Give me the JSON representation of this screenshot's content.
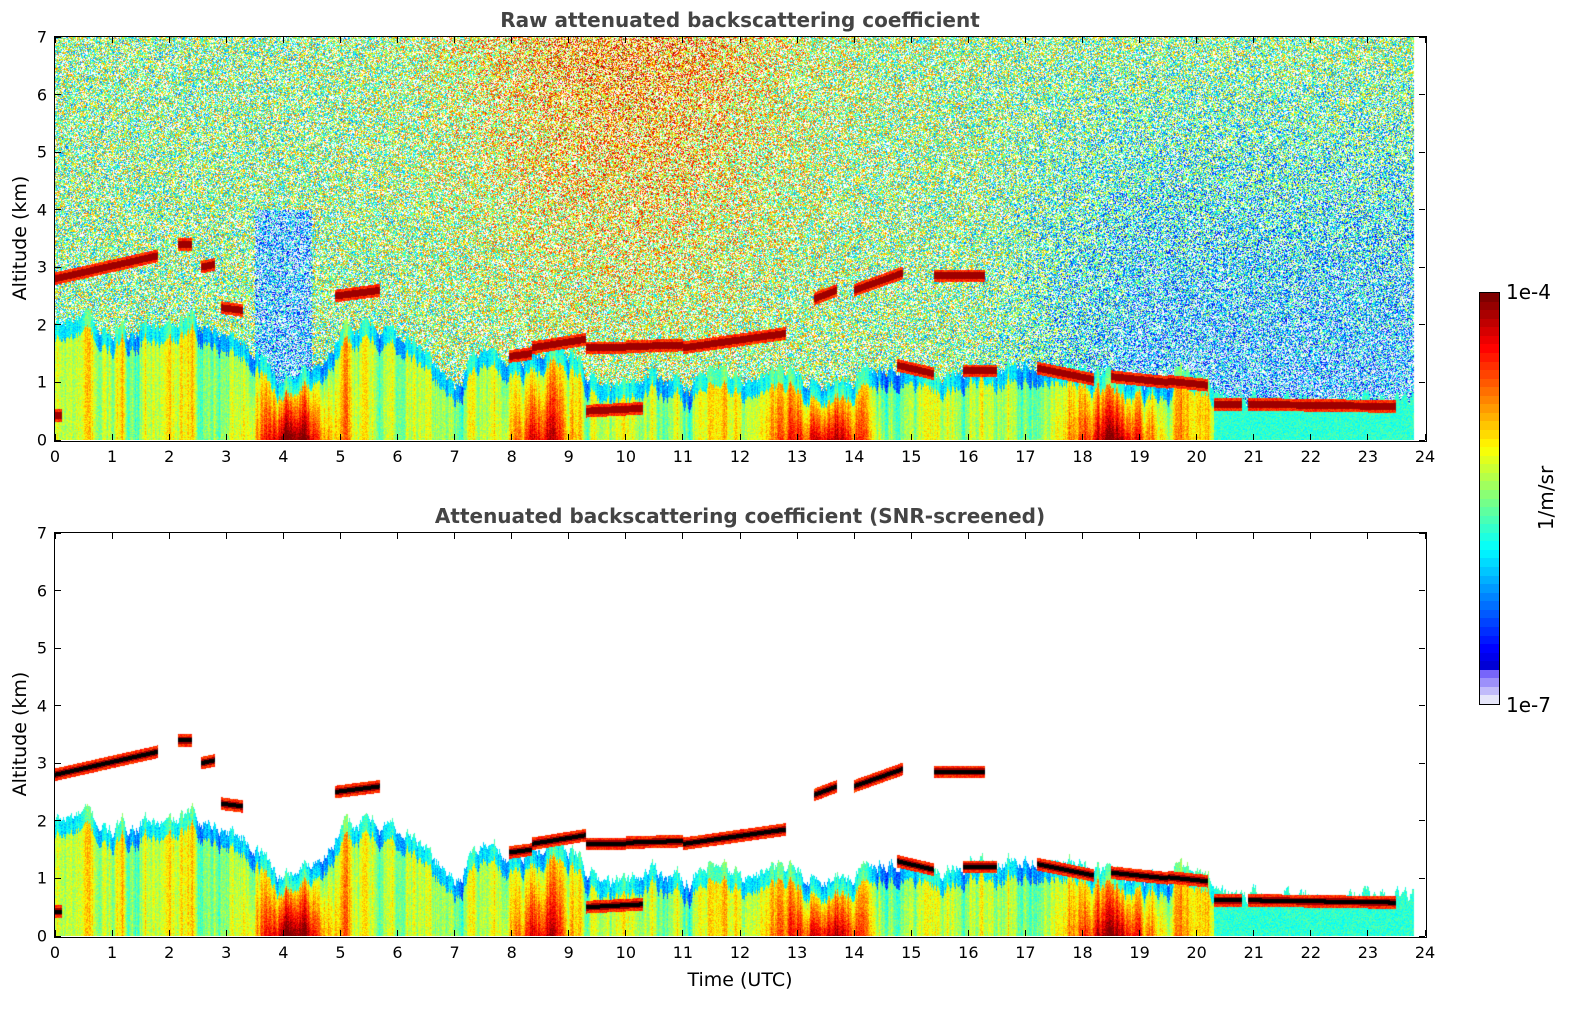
{
  "chart_data": {
    "type": "heatmap",
    "panels": [
      {
        "title": "Raw attenuated backscattering coefficient",
        "screened": false,
        "ylabel": "Altitude (km)",
        "xlabel": ""
      },
      {
        "title": "Attenuated backscattering coefficient (SNR-screened)",
        "screened": true,
        "ylabel": "Altitude (km)",
        "xlabel": "Time (UTC)"
      }
    ],
    "xlim": [
      0,
      24
    ],
    "ylim": [
      0,
      7
    ],
    "xticks": [
      "0",
      "1",
      "2",
      "3",
      "4",
      "5",
      "6",
      "7",
      "8",
      "9",
      "10",
      "11",
      "12",
      "13",
      "14",
      "15",
      "16",
      "17",
      "18",
      "19",
      "20",
      "21",
      "22",
      "23",
      "24"
    ],
    "yticks": [
      "0",
      "1",
      "2",
      "3",
      "4",
      "5",
      "6",
      "7"
    ],
    "data_end_time": 23.8,
    "colorbar": {
      "label": "1/m/sr",
      "min_label": "1e-7",
      "max_label": "1e-4",
      "scale": "log",
      "range": [
        1e-07,
        0.0001
      ],
      "colormap": "jet"
    },
    "boundary_layer_top_km": {
      "time": [
        0,
        0.5,
        1,
        1.5,
        2,
        2.5,
        3,
        3.5,
        4,
        4.5,
        5,
        5.5,
        6,
        6.5,
        7,
        7.5,
        8,
        8.5,
        9,
        9.5,
        10,
        10.5,
        11,
        11.5,
        12,
        12.5,
        13,
        13.5,
        14,
        14.5,
        15,
        15.5,
        16,
        16.5,
        17,
        17.5,
        18,
        18.5,
        19,
        19.5,
        20,
        20.5,
        21,
        21.5,
        22,
        22.5,
        23,
        23.8
      ],
      "altitude": [
        2.0,
        2.1,
        1.8,
        2.0,
        1.9,
        2.1,
        1.9,
        1.6,
        1.0,
        1.3,
        1.8,
        2.0,
        1.9,
        1.5,
        1.0,
        1.6,
        1.4,
        1.6,
        1.5,
        1.0,
        0.9,
        1.2,
        1.0,
        1.1,
        1.0,
        1.1,
        1.1,
        1.0,
        1.0,
        1.4,
        1.3,
        1.0,
        1.3,
        1.2,
        1.4,
        1.3,
        1.2,
        1.1,
        1.1,
        1.1,
        1.0,
        0.7,
        0.7,
        0.7,
        0.7,
        0.7,
        0.65,
        0.65
      ]
    },
    "cloud_layers": [
      {
        "start": 0.0,
        "end": 1.8,
        "alt_start": 2.8,
        "alt_end": 3.2
      },
      {
        "start": 2.15,
        "end": 2.4,
        "alt_start": 3.4,
        "alt_end": 3.4
      },
      {
        "start": 2.55,
        "end": 2.8,
        "alt_start": 3.0,
        "alt_end": 3.05
      },
      {
        "start": 2.9,
        "end": 3.3,
        "alt_start": 2.3,
        "alt_end": 2.25
      },
      {
        "start": 4.9,
        "end": 5.7,
        "alt_start": 2.5,
        "alt_end": 2.6
      },
      {
        "start": 7.95,
        "end": 8.35,
        "alt_start": 1.45,
        "alt_end": 1.5
      },
      {
        "start": 8.35,
        "end": 9.3,
        "alt_start": 1.6,
        "alt_end": 1.75
      },
      {
        "start": 9.3,
        "end": 10.0,
        "alt_start": 1.6,
        "alt_end": 1.6
      },
      {
        "start": 10.0,
        "end": 11.0,
        "alt_start": 1.62,
        "alt_end": 1.65
      },
      {
        "start": 11.0,
        "end": 12.8,
        "alt_start": 1.6,
        "alt_end": 1.85
      },
      {
        "start": 13.3,
        "end": 13.7,
        "alt_start": 2.45,
        "alt_end": 2.6
      },
      {
        "start": 14.0,
        "end": 14.85,
        "alt_start": 2.6,
        "alt_end": 2.9
      },
      {
        "start": 15.4,
        "end": 16.3,
        "alt_start": 2.85,
        "alt_end": 2.85
      },
      {
        "start": 14.75,
        "end": 15.4,
        "alt_start": 1.3,
        "alt_end": 1.15
      },
      {
        "start": 15.9,
        "end": 16.5,
        "alt_start": 1.2,
        "alt_end": 1.2
      },
      {
        "start": 17.2,
        "end": 18.2,
        "alt_start": 1.25,
        "alt_end": 1.05
      },
      {
        "start": 18.5,
        "end": 19.5,
        "alt_start": 1.1,
        "alt_end": 1.0
      },
      {
        "start": 19.5,
        "end": 20.2,
        "alt_start": 1.02,
        "alt_end": 0.95
      },
      {
        "start": 20.3,
        "end": 20.8,
        "alt_start": 0.62,
        "alt_end": 0.62
      },
      {
        "start": 20.9,
        "end": 23.5,
        "alt_start": 0.62,
        "alt_end": 0.58
      },
      {
        "start": 9.3,
        "end": 10.3,
        "alt_start": 0.5,
        "alt_end": 0.55
      },
      {
        "start": 0.0,
        "end": 0.12,
        "alt_start": 0.42,
        "alt_end": 0.42
      }
    ]
  }
}
